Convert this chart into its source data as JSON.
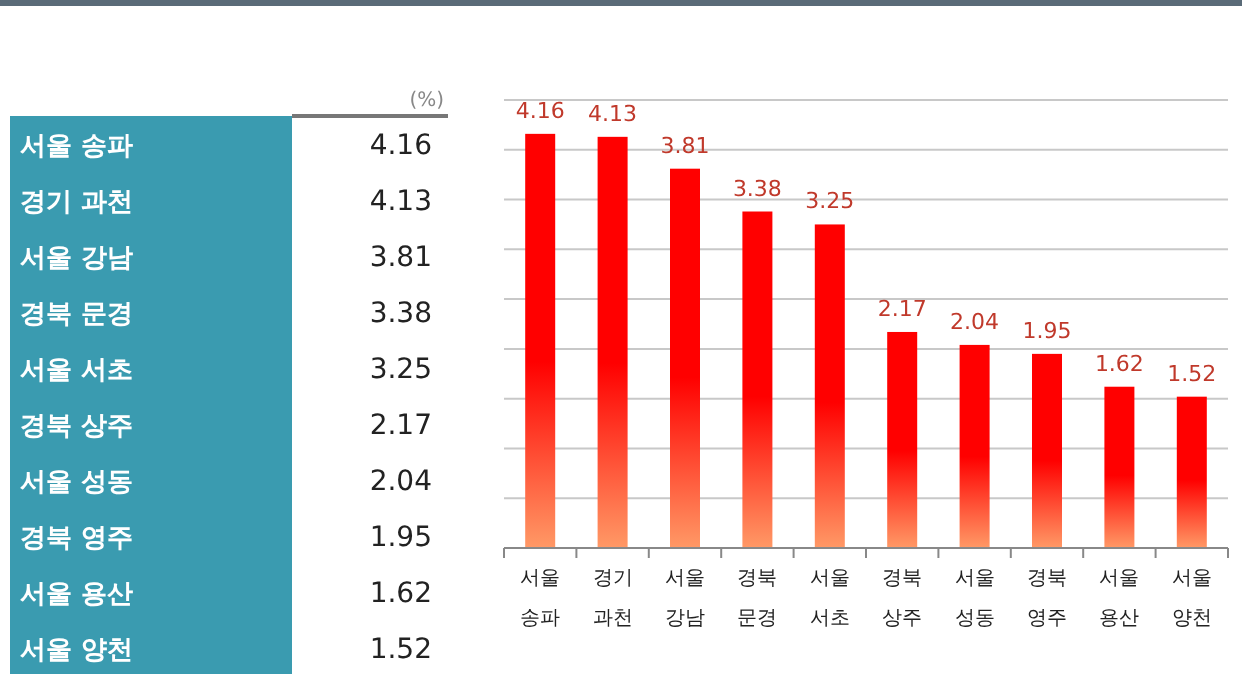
{
  "chart_data": [
    {
      "type": "other",
      "categories": [
        "서울 송파",
        "경기 과천",
        "서울 강남",
        "경북 문경",
        "서울 서초",
        "경북 상주",
        "서울 성동",
        "경북 영주",
        "서울 용산",
        "서울 양천"
      ],
      "values": [
        4.16,
        4.13,
        3.81,
        3.38,
        3.25,
        2.17,
        2.04,
        1.95,
        1.62,
        1.52
      ],
      "color": "#3a9bb0",
      "data_labels": true,
      "annotations": [
        "(%)"
      ]
    },
    {
      "type": "bar",
      "categories": [
        "서울 송파",
        "경기 과천",
        "서울 강남",
        "경북 문경",
        "서울 서초",
        "경북 상주",
        "서울 성동",
        "경북 영주",
        "서울 용산",
        "서울 양천"
      ],
      "values": [
        4.16,
        4.13,
        3.81,
        3.38,
        3.25,
        2.17,
        2.04,
        1.95,
        1.62,
        1.52
      ],
      "color": "#ff0000",
      "ylim": [
        0,
        4.5
      ],
      "yticks": [
        {
          "value": 0,
          "label": null
        },
        {
          "value": 0.5,
          "label": null
        },
        {
          "value": 1,
          "label": null
        },
        {
          "value": 1.5,
          "label": null
        },
        {
          "value": 2,
          "label": null
        },
        {
          "value": 2.5,
          "label": null
        },
        {
          "value": 3,
          "label": null
        },
        {
          "value": 3.5,
          "label": null
        },
        {
          "value": 4,
          "label": null
        },
        {
          "value": 4.5,
          "label": null
        }
      ],
      "grid": "y",
      "tick_labels": "x",
      "data_labels": true
    }
  ]
}
